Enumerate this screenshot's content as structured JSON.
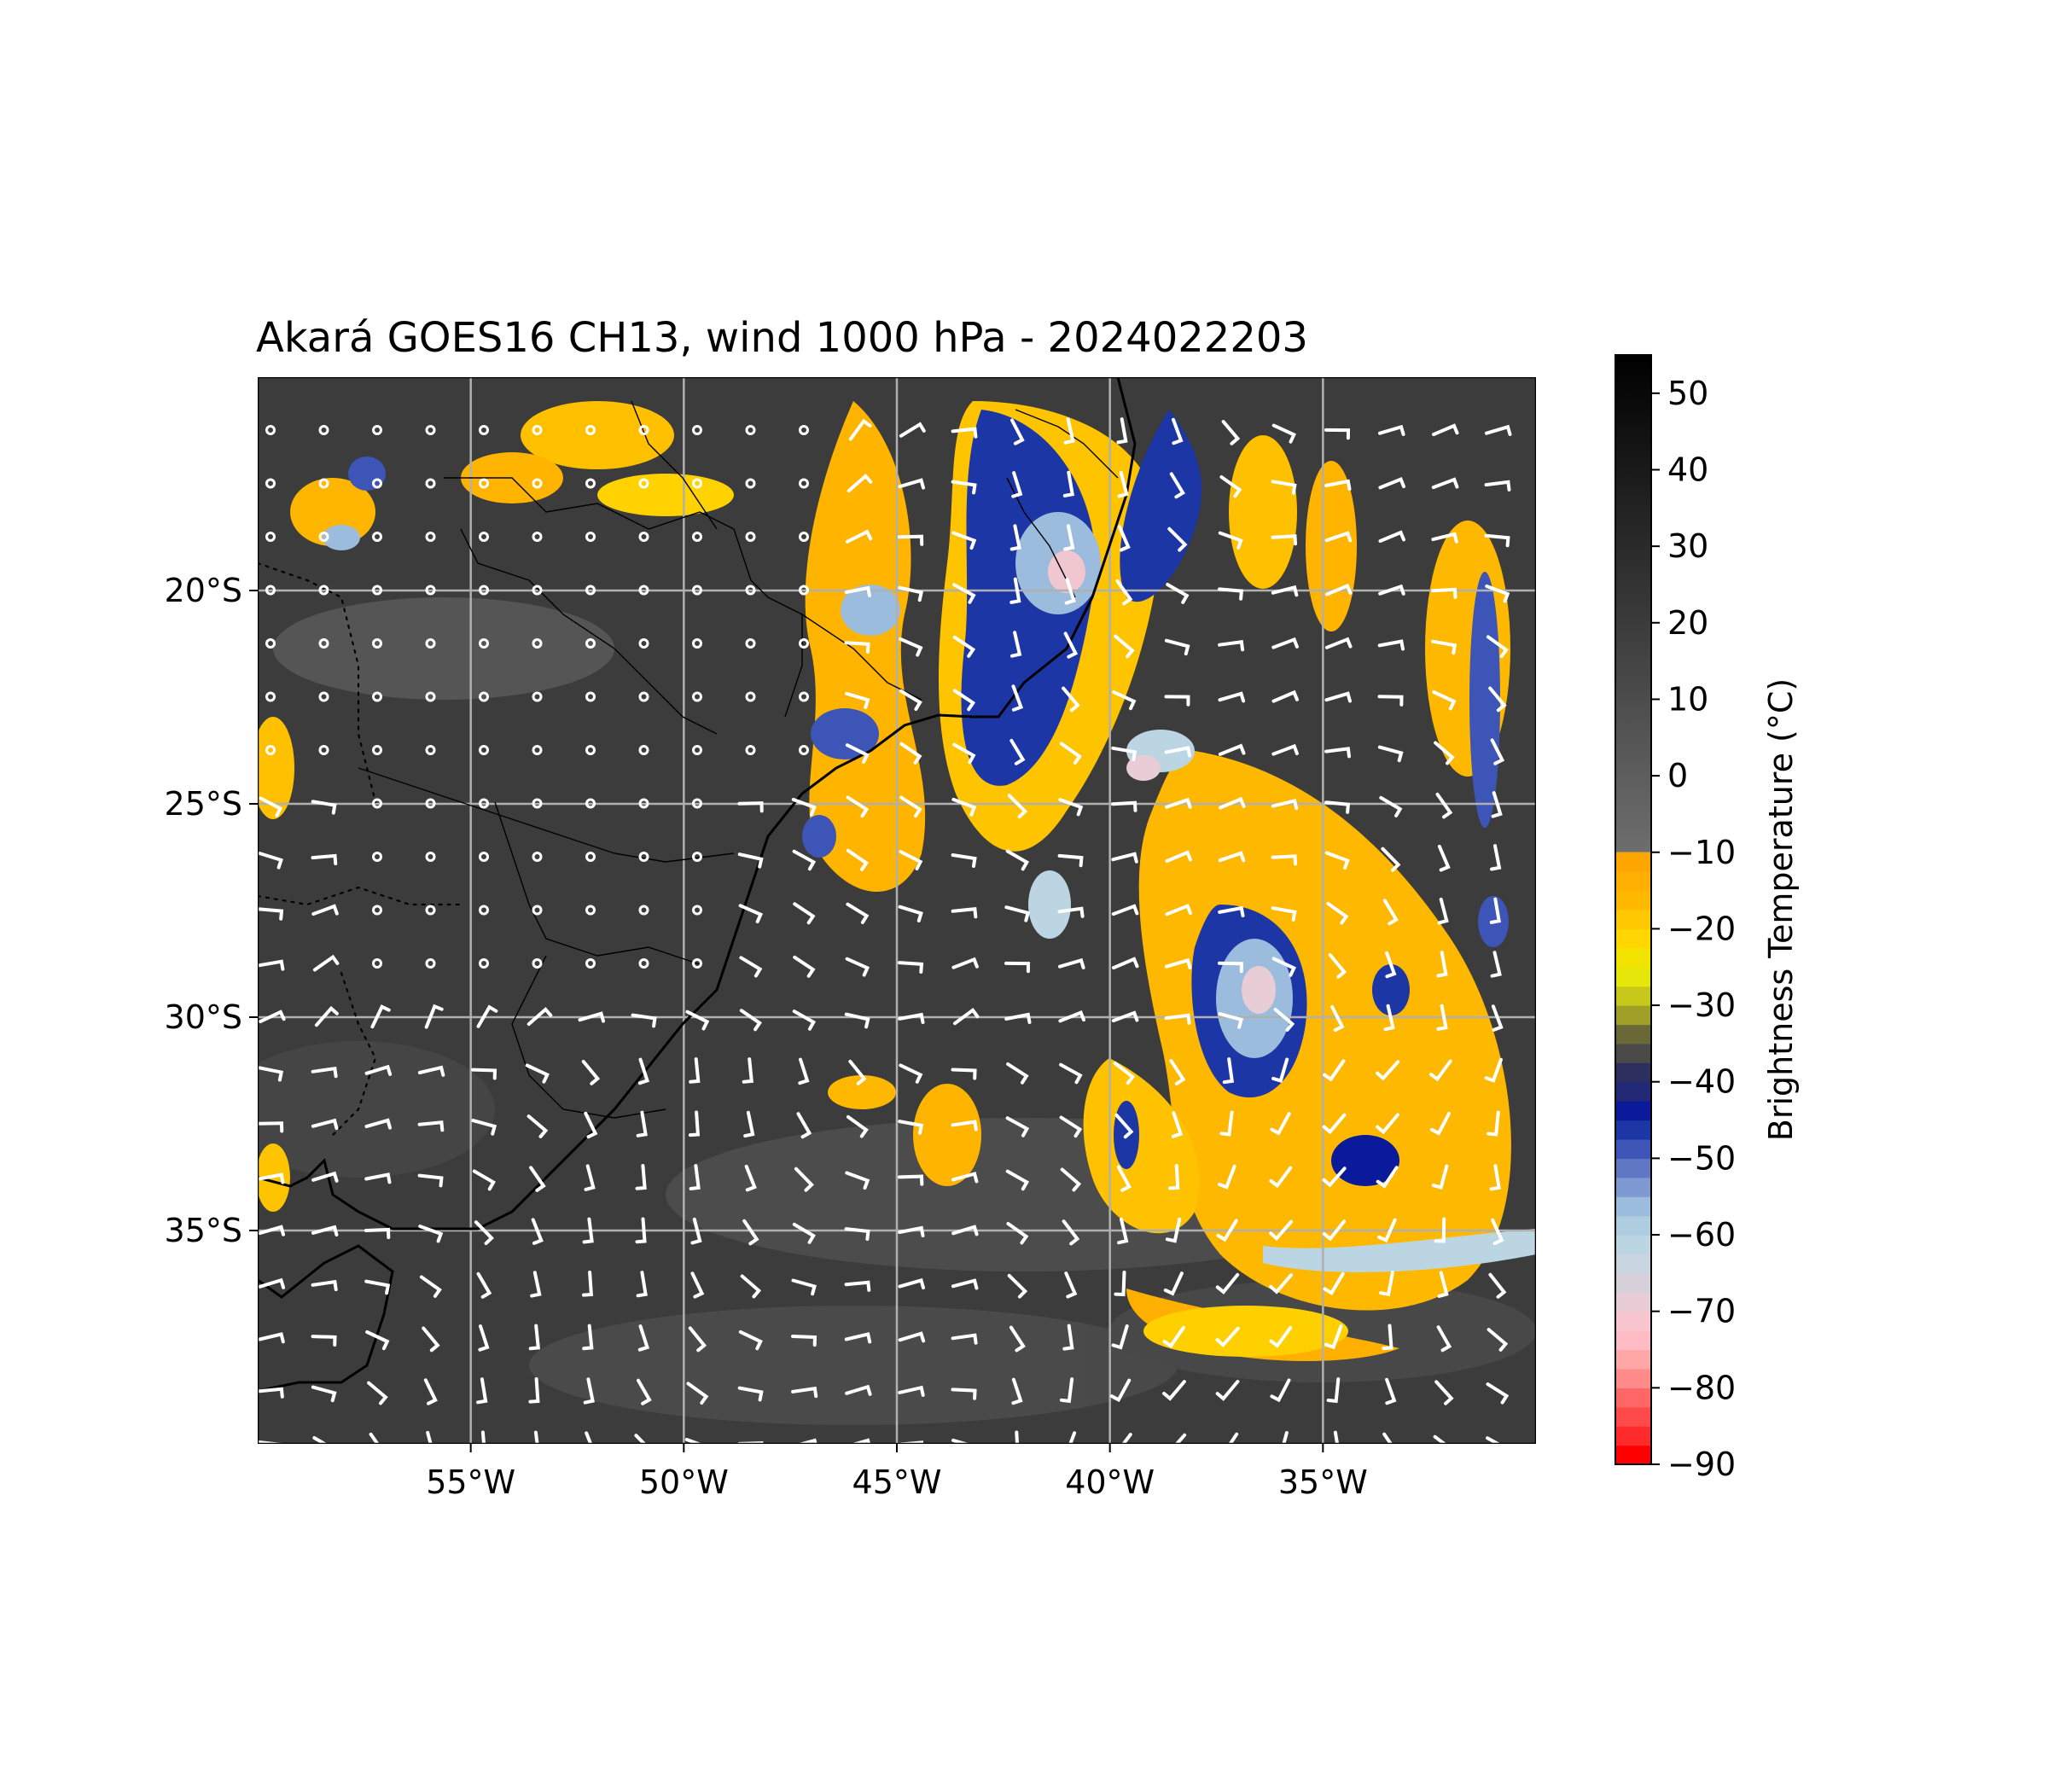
{
  "title": "Akará GOES16 CH13, wind 1000 hPa - 2024022203",
  "map": {
    "lon_range": [
      -60,
      -30
    ],
    "lat_range": [
      -40,
      -15
    ],
    "lon_ticks": [
      {
        "value": -55,
        "label": "55°W"
      },
      {
        "value": -50,
        "label": "50°W"
      },
      {
        "value": -45,
        "label": "45°W"
      },
      {
        "value": -40,
        "label": "40°W"
      },
      {
        "value": -35,
        "label": "35°W"
      }
    ],
    "lat_ticks": [
      {
        "value": -20,
        "label": "20°S"
      },
      {
        "value": -25,
        "label": "25°S"
      },
      {
        "value": -30,
        "label": "30°S"
      },
      {
        "value": -35,
        "label": "35°S"
      }
    ],
    "gridlines": true,
    "background_color": "#3c3c3c",
    "wind_barb_color": "#ffffff",
    "coastline_color": "#000000"
  },
  "colorbar": {
    "label": "Brightness Temperature (°C)",
    "range": [
      -90,
      55
    ],
    "ticks": [
      {
        "value": 50,
        "label": "50"
      },
      {
        "value": 40,
        "label": "40"
      },
      {
        "value": 30,
        "label": "30"
      },
      {
        "value": 20,
        "label": "20"
      },
      {
        "value": 10,
        "label": "10"
      },
      {
        "value": 0,
        "label": "0"
      },
      {
        "value": -10,
        "label": "−10"
      },
      {
        "value": -20,
        "label": "−20"
      },
      {
        "value": -30,
        "label": "−30"
      },
      {
        "value": -40,
        "label": "−40"
      },
      {
        "value": -50,
        "label": "−50"
      },
      {
        "value": -60,
        "label": "−60"
      },
      {
        "value": -70,
        "label": "−70"
      },
      {
        "value": -80,
        "label": "−80"
      },
      {
        "value": -90,
        "label": "−90"
      }
    ],
    "segments": [
      {
        "from": -90,
        "to": -87.5,
        "color": "#ff0000"
      },
      {
        "from": -87.5,
        "to": -85,
        "color": "#ff2a2a"
      },
      {
        "from": -85,
        "to": -82.5,
        "color": "#ff4a4a"
      },
      {
        "from": -82.5,
        "to": -80,
        "color": "#ff6666"
      },
      {
        "from": -80,
        "to": -77.5,
        "color": "#ff8a8a"
      },
      {
        "from": -77.5,
        "to": -75,
        "color": "#ffa6a6"
      },
      {
        "from": -75,
        "to": -72.5,
        "color": "#ffbcc4"
      },
      {
        "from": -72.5,
        "to": -70,
        "color": "#f7c6cf"
      },
      {
        "from": -70,
        "to": -67.5,
        "color": "#e8cdd6"
      },
      {
        "from": -67.5,
        "to": -65,
        "color": "#d6d0db"
      },
      {
        "from": -65,
        "to": -62.5,
        "color": "#c8d4e0"
      },
      {
        "from": -62.5,
        "to": -60,
        "color": "#bcd5e2"
      },
      {
        "from": -60,
        "to": -57.5,
        "color": "#aecde0"
      },
      {
        "from": -57.5,
        "to": -55,
        "color": "#9bbcdc"
      },
      {
        "from": -55,
        "to": -52.5,
        "color": "#7f9ad2"
      },
      {
        "from": -52.5,
        "to": -50,
        "color": "#6077c4"
      },
      {
        "from": -50,
        "to": -47.5,
        "color": "#3d55b6"
      },
      {
        "from": -47.5,
        "to": -45,
        "color": "#1d36a6"
      },
      {
        "from": -45,
        "to": -42.5,
        "color": "#0a1a9a"
      },
      {
        "from": -42.5,
        "to": -40,
        "color": "#222a78"
      },
      {
        "from": -40,
        "to": -37.5,
        "color": "#2d2f5e"
      },
      {
        "from": -37.5,
        "to": -35,
        "color": "#4a4a48"
      },
      {
        "from": -35,
        "to": -32.5,
        "color": "#6b6838"
      },
      {
        "from": -32.5,
        "to": -30,
        "color": "#a0a028"
      },
      {
        "from": -30,
        "to": -27.5,
        "color": "#c8c81a"
      },
      {
        "from": -27.5,
        "to": -25,
        "color": "#e6e60a"
      },
      {
        "from": -25,
        "to": -22.5,
        "color": "#f2e400"
      },
      {
        "from": -22.5,
        "to": -20,
        "color": "#ffd600"
      },
      {
        "from": -20,
        "to": -17.5,
        "color": "#ffc800"
      },
      {
        "from": -17.5,
        "to": -15,
        "color": "#ffba00"
      },
      {
        "from": -15,
        "to": -12.5,
        "color": "#ffb000"
      },
      {
        "from": -12.5,
        "to": -10,
        "color": "#ffa500"
      }
    ],
    "gray_top_color": "#000000",
    "gray_bottom_color": "#6e6e6e"
  }
}
